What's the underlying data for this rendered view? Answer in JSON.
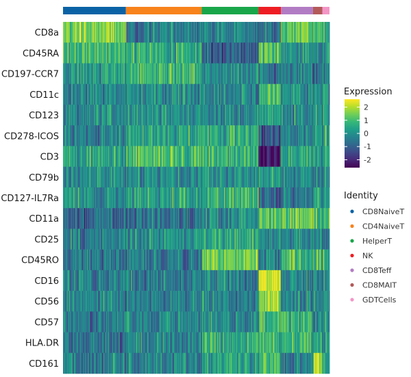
{
  "chart_data": {
    "type": "heatmap",
    "title": "",
    "xlabel": "",
    "ylabel": "",
    "rows": [
      "CD8a",
      "CD45RA",
      "CD197-CCR7",
      "CD11c",
      "CD123",
      "CD278-ICOS",
      "CD3",
      "CD79b",
      "CD127-IL7Ra",
      "CD11a",
      "CD25",
      "CD45RO",
      "CD16",
      "CD56",
      "CD57",
      "HLA.DR",
      "CD161"
    ],
    "groups": [
      {
        "name": "CD8NaiveT",
        "color": "#0b63a6",
        "share": 0.236
      },
      {
        "name": "CD4NaiveT",
        "color": "#f8821b",
        "share": 0.284
      },
      {
        "name": "HelperT",
        "color": "#19a64a",
        "share": 0.214
      },
      {
        "name": "NK",
        "color": "#ee1d23",
        "share": 0.084
      },
      {
        "name": "CD8Teff",
        "color": "#b27cc4",
        "share": 0.12
      },
      {
        "name": "CD8MAIT",
        "color": "#b35a5a",
        "share": 0.035
      },
      {
        "name": "GDTCells",
        "color": "#f396c6",
        "share": 0.027
      }
    ],
    "mean_expression": [
      [
        1.6,
        -0.3,
        -0.3,
        -0.5,
        1.4,
        1.0,
        0.4
      ],
      [
        0.7,
        0.6,
        -1.2,
        1.2,
        0.3,
        -0.3,
        0.2
      ],
      [
        0.2,
        0.8,
        -0.1,
        -0.4,
        -0.5,
        -0.6,
        -0.3
      ],
      [
        -0.2,
        -0.1,
        -0.3,
        1.0,
        0.0,
        -0.2,
        0.1
      ],
      [
        -0.1,
        0.0,
        -0.2,
        0.4,
        -0.1,
        -0.1,
        0.0
      ],
      [
        -0.4,
        0.5,
        0.6,
        -1.3,
        -0.4,
        0.3,
        0.1
      ],
      [
        0.4,
        1.1,
        0.7,
        -2.4,
        0.3,
        0.3,
        0.8
      ],
      [
        -0.2,
        -0.2,
        -0.1,
        0.5,
        -0.1,
        -0.2,
        -0.2
      ],
      [
        0.0,
        0.4,
        0.8,
        -1.0,
        -0.5,
        0.3,
        0.0
      ],
      [
        -0.9,
        -0.7,
        -0.1,
        1.2,
        1.3,
        0.9,
        0.6
      ],
      [
        -0.4,
        0.0,
        0.6,
        -0.3,
        -0.2,
        0.1,
        -0.1
      ],
      [
        -0.6,
        -0.5,
        1.5,
        -0.3,
        0.7,
        0.9,
        0.4
      ],
      [
        -0.3,
        -0.3,
        -0.3,
        2.3,
        -0.2,
        -0.3,
        -0.2
      ],
      [
        -0.3,
        -0.3,
        -0.3,
        2.0,
        -0.2,
        0.0,
        0.0
      ],
      [
        -0.3,
        -0.3,
        -0.2,
        1.0,
        0.8,
        -0.1,
        0.1
      ],
      [
        -0.6,
        -0.3,
        0.7,
        0.7,
        0.5,
        0.4,
        0.4
      ],
      [
        -0.4,
        -0.2,
        0.4,
        1.0,
        -0.2,
        2.3,
        0.6
      ]
    ],
    "color_scale": {
      "name": "viridis",
      "range": [
        -2.6,
        2.6
      ],
      "stops": [
        "#440154",
        "#482878",
        "#3e4989",
        "#31688e",
        "#26828e",
        "#1f9e89",
        "#35b779",
        "#6ece58",
        "#b5de2b",
        "#fde725"
      ]
    },
    "legend_expression": {
      "title": "Expression",
      "ticks": [
        2,
        1,
        0,
        -1,
        -2
      ],
      "tick_labels": [
        "2",
        "1",
        "0",
        "-1",
        "-2"
      ]
    },
    "legend_identity": {
      "title": "Identity",
      "entries": [
        "CD8NaiveT",
        "CD4NaiveT",
        "HelperT",
        "NK",
        "CD8Teff",
        "CD8MAIT",
        "GDTCells"
      ]
    },
    "grid": false,
    "legend_placement": "right"
  }
}
